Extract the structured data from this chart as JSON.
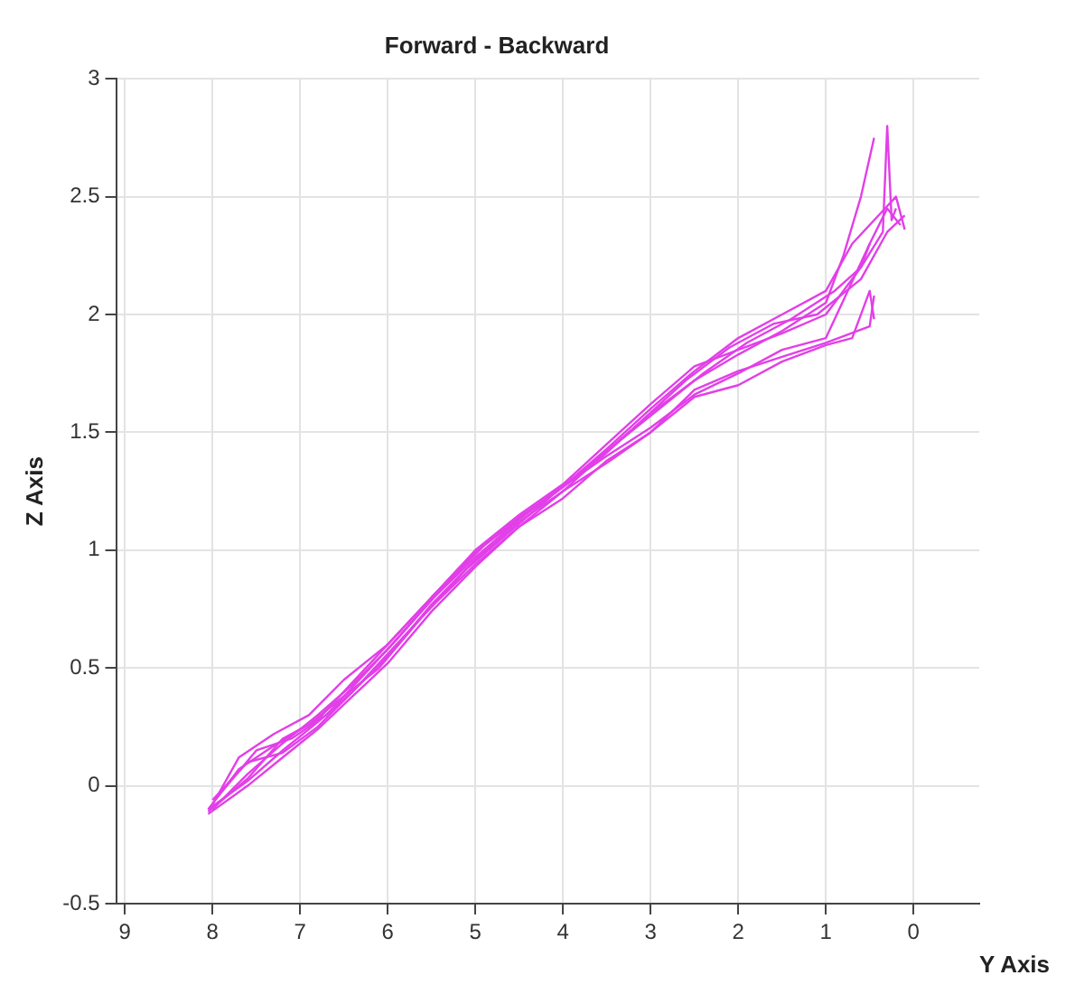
{
  "chart_data": {
    "type": "line",
    "title": "Forward - Backward",
    "xlabel": "Y Axis",
    "ylabel": "Z Axis",
    "xlim": [
      9.1,
      -0.75
    ],
    "xticks": [
      9,
      8,
      7,
      6,
      5,
      4,
      3,
      2,
      1,
      0
    ],
    "ylim": [
      -0.5,
      3
    ],
    "yticks": [
      -0.5,
      0,
      0.5,
      1,
      1.5,
      2,
      2.5,
      3
    ],
    "grid": true,
    "marker": "none",
    "line_style": "solid",
    "legend": false,
    "series": [
      {
        "color": "#e23fe8",
        "x": [
          8.05,
          7.6,
          7.2,
          6.8,
          6.4,
          6.0,
          5.5,
          5.0,
          4.5,
          4.0,
          3.5,
          3.0,
          2.5,
          2.0,
          1.5,
          1.0,
          0.8,
          0.6,
          0.45
        ],
        "values": [
          -0.1,
          0.02,
          0.15,
          0.27,
          0.4,
          0.55,
          0.77,
          0.96,
          1.12,
          1.25,
          1.42,
          1.58,
          1.72,
          1.83,
          1.93,
          2.05,
          2.25,
          2.5,
          2.75
        ]
      },
      {
        "color": "#e23fe8",
        "x": [
          8.0,
          7.7,
          7.3,
          6.9,
          6.5,
          6.0,
          5.5,
          5.0,
          4.5,
          4.0,
          3.5,
          3.0,
          2.5,
          2.0,
          1.5,
          1.0,
          0.6,
          0.35,
          0.3,
          0.25,
          0.2
        ],
        "values": [
          -0.08,
          0.12,
          0.22,
          0.3,
          0.45,
          0.6,
          0.8,
          1.0,
          1.15,
          1.28,
          1.45,
          1.62,
          1.78,
          1.85,
          1.92,
          2.0,
          2.2,
          2.35,
          2.8,
          2.4,
          2.45
        ]
      },
      {
        "color": "#e23fe8",
        "x": [
          8.05,
          7.6,
          7.2,
          6.8,
          6.4,
          6.0,
          5.5,
          5.0,
          4.5,
          4.0,
          3.5,
          3.0,
          2.5,
          2.0,
          1.5,
          1.0,
          0.7,
          0.5,
          0.45
        ],
        "values": [
          -0.12,
          0.0,
          0.12,
          0.24,
          0.38,
          0.52,
          0.74,
          0.93,
          1.1,
          1.22,
          1.38,
          1.5,
          1.65,
          1.7,
          1.8,
          1.87,
          1.9,
          2.1,
          1.98
        ]
      },
      {
        "color": "#e23fe8",
        "x": [
          7.95,
          7.5,
          7.1,
          6.7,
          6.3,
          5.9,
          5.4,
          4.9,
          4.4,
          3.9,
          3.4,
          2.9,
          2.4,
          1.9,
          1.4,
          0.9,
          0.6,
          0.5
        ],
        "values": [
          -0.05,
          0.15,
          0.2,
          0.3,
          0.46,
          0.62,
          0.83,
          1.02,
          1.16,
          1.3,
          1.45,
          1.6,
          1.75,
          1.88,
          1.98,
          2.1,
          2.2,
          2.3
        ]
      },
      {
        "color": "#e23fe8",
        "x": [
          8.0,
          7.6,
          7.2,
          6.8,
          6.4,
          6.0,
          5.5,
          5.0,
          4.5,
          4.0,
          3.5,
          3.0,
          2.5,
          2.0,
          1.5,
          1.0,
          0.5,
          0.3,
          0.15
        ],
        "values": [
          -0.1,
          0.05,
          0.18,
          0.3,
          0.43,
          0.58,
          0.79,
          0.97,
          1.13,
          1.27,
          1.4,
          1.52,
          1.66,
          1.75,
          1.85,
          1.9,
          2.3,
          2.45,
          2.38
        ]
      },
      {
        "color": "#e23fe8",
        "x": [
          8.05,
          7.7,
          7.3,
          6.9,
          6.5,
          6.1,
          5.6,
          5.1,
          4.6,
          4.1,
          3.6,
          3.1,
          2.6,
          2.1,
          1.6,
          1.1,
          0.6,
          0.3,
          0.1
        ],
        "values": [
          -0.1,
          0.07,
          0.17,
          0.26,
          0.38,
          0.5,
          0.72,
          0.92,
          1.08,
          1.24,
          1.38,
          1.55,
          1.72,
          1.86,
          1.96,
          2.0,
          2.15,
          2.35,
          2.42
        ]
      },
      {
        "color": "#e23fe8",
        "x": [
          8.0,
          7.6,
          7.2,
          6.8,
          6.4,
          6.0,
          5.5,
          5.0,
          4.5,
          4.0,
          3.5,
          3.0,
          2.5,
          2.0,
          1.5,
          1.0,
          0.5,
          0.45
        ],
        "values": [
          -0.06,
          0.1,
          0.14,
          0.25,
          0.4,
          0.56,
          0.76,
          0.94,
          1.1,
          1.25,
          1.37,
          1.5,
          1.68,
          1.76,
          1.82,
          1.88,
          1.95,
          2.08
        ]
      },
      {
        "color": "#e23fe8",
        "x": [
          8.05,
          7.6,
          7.2,
          6.8,
          6.4,
          6.0,
          5.5,
          5.0,
          4.5,
          4.0,
          3.5,
          3.0,
          2.5,
          2.0,
          1.5,
          1.0,
          0.7,
          0.4,
          0.2,
          0.1
        ],
        "values": [
          -0.11,
          0.03,
          0.2,
          0.28,
          0.44,
          0.6,
          0.8,
          0.99,
          1.14,
          1.27,
          1.43,
          1.6,
          1.76,
          1.9,
          2.0,
          2.1,
          2.3,
          2.42,
          2.5,
          2.36
        ]
      }
    ]
  }
}
